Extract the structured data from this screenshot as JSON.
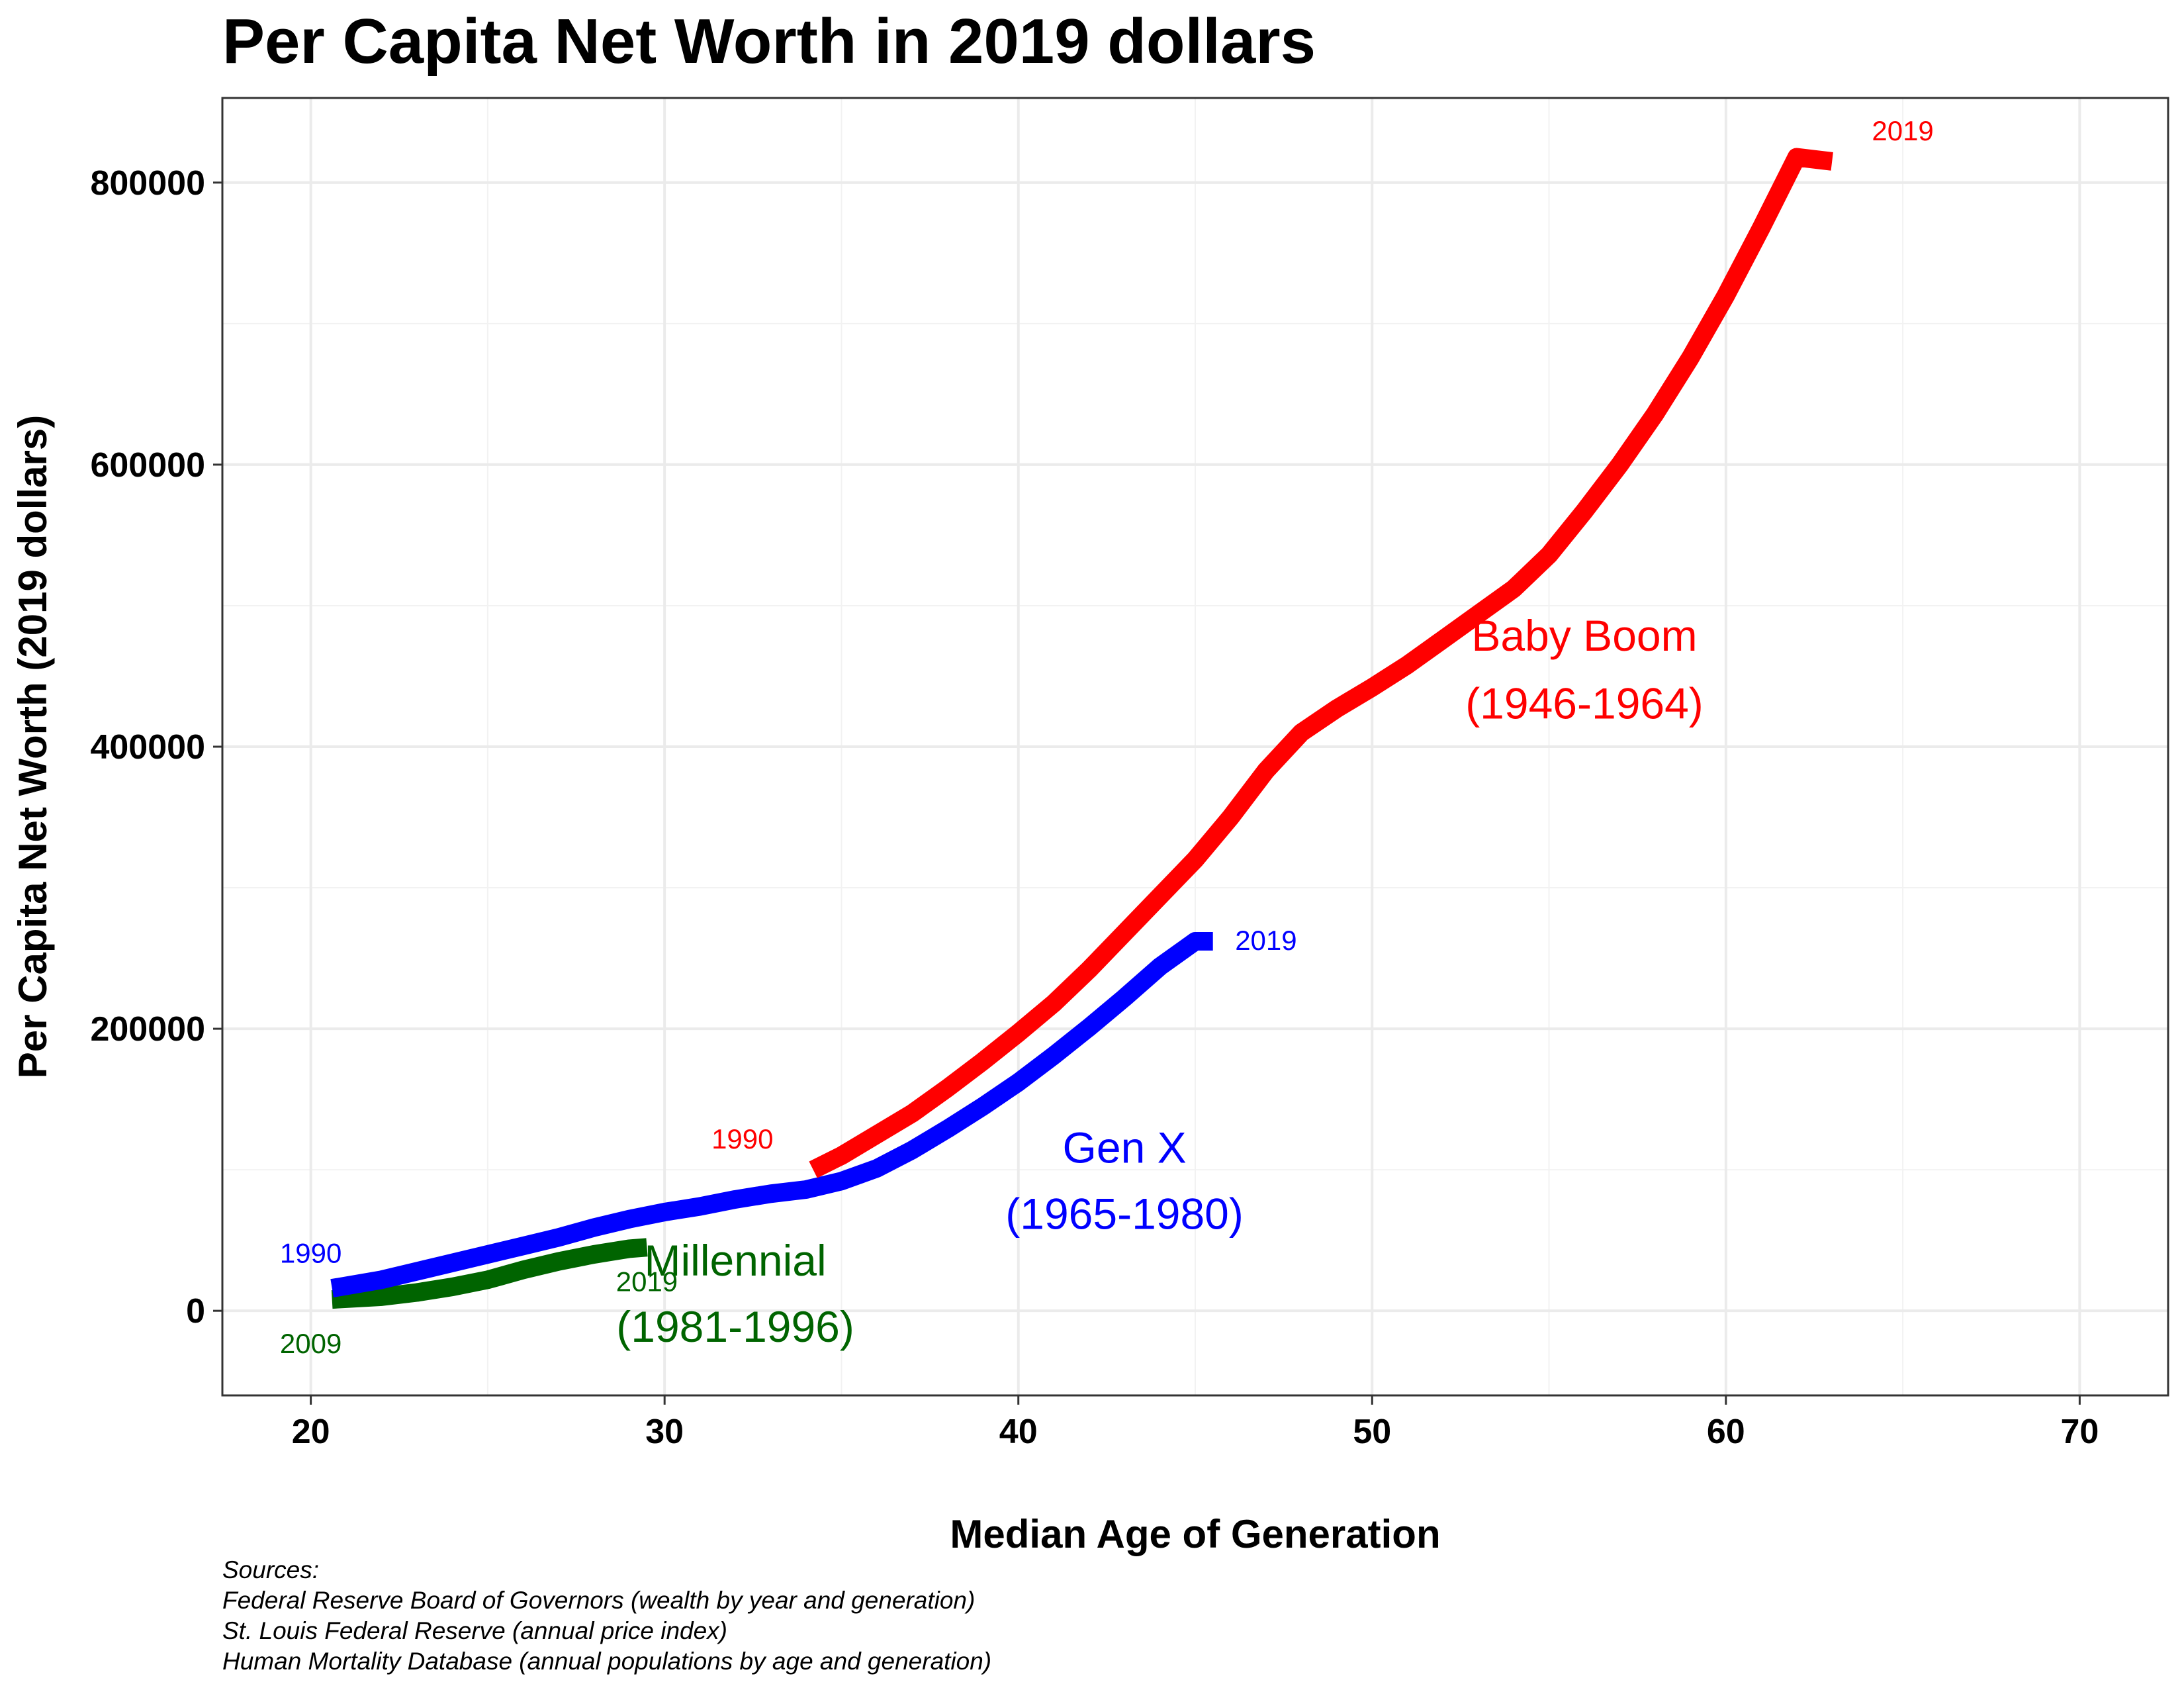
{
  "chart_data": {
    "type": "line",
    "title": "Per Capita Net Worth in 2019 dollars",
    "xlabel": "Median Age of Generation",
    "ylabel": "Per Capita Net Worth (2019 dollars)",
    "xlim": [
      17.5,
      72.5
    ],
    "ylim": [
      -60000,
      860000
    ],
    "x_ticks": [
      20,
      30,
      40,
      50,
      60,
      70
    ],
    "y_ticks": [
      0,
      200000,
      400000,
      600000,
      800000
    ],
    "grid": true,
    "legend": "none",
    "caption_lines": [
      "Sources:",
      "Federal Reserve Board of Governors (wealth by year and generation)",
      "St. Louis Federal Reserve (annual price index)",
      "Human Mortality Database (annual populations by age and generation)"
    ],
    "series": [
      {
        "name": "Baby Boom",
        "label_lines": [
          "Baby Boom",
          "(1946-1964)"
        ],
        "color": "#ff0000",
        "start_year": "1990",
        "end_year": "2019",
        "x": [
          34.2,
          35,
          36,
          37,
          38,
          39,
          40,
          41,
          42,
          43,
          44,
          45,
          46,
          47,
          48,
          49,
          50,
          51,
          52,
          53,
          54,
          55,
          56,
          57,
          58,
          59,
          60,
          61,
          62,
          63
        ],
        "y": [
          100000,
          110000,
          125000,
          140000,
          158000,
          177000,
          197000,
          218000,
          242000,
          268000,
          294000,
          320000,
          350000,
          383000,
          410000,
          427000,
          442000,
          458000,
          476000,
          494000,
          512000,
          536000,
          567000,
          600000,
          636000,
          676000,
          720000,
          768000,
          818000,
          815000
        ]
      },
      {
        "name": "Gen X",
        "label_lines": [
          "Gen X",
          "(1965-1980)"
        ],
        "color": "#0000ff",
        "start_year": "1990",
        "end_year": "2019",
        "x": [
          20.6,
          22,
          23,
          24,
          25,
          26,
          27,
          28,
          29,
          30,
          31,
          32,
          33,
          34,
          35,
          36,
          37,
          38,
          39,
          40,
          41,
          42,
          43,
          44,
          45,
          45.5
        ],
        "y": [
          16000,
          22000,
          28000,
          34000,
          40000,
          46000,
          52000,
          59000,
          65000,
          70000,
          74000,
          79000,
          83000,
          86000,
          92000,
          101000,
          114000,
          129000,
          145000,
          162000,
          181000,
          201000,
          222000,
          244000,
          262000,
          262000
        ]
      },
      {
        "name": "Millennial",
        "label_lines": [
          "Millennial",
          "(1981-1996)"
        ],
        "color": "#006400",
        "start_year": "2009",
        "end_year": "2019",
        "x": [
          20.6,
          22,
          23,
          24,
          25,
          26,
          27,
          28,
          29,
          29.5
        ],
        "y": [
          8000,
          10000,
          13000,
          17000,
          22000,
          29000,
          35000,
          40000,
          44000,
          45000
        ]
      }
    ]
  }
}
